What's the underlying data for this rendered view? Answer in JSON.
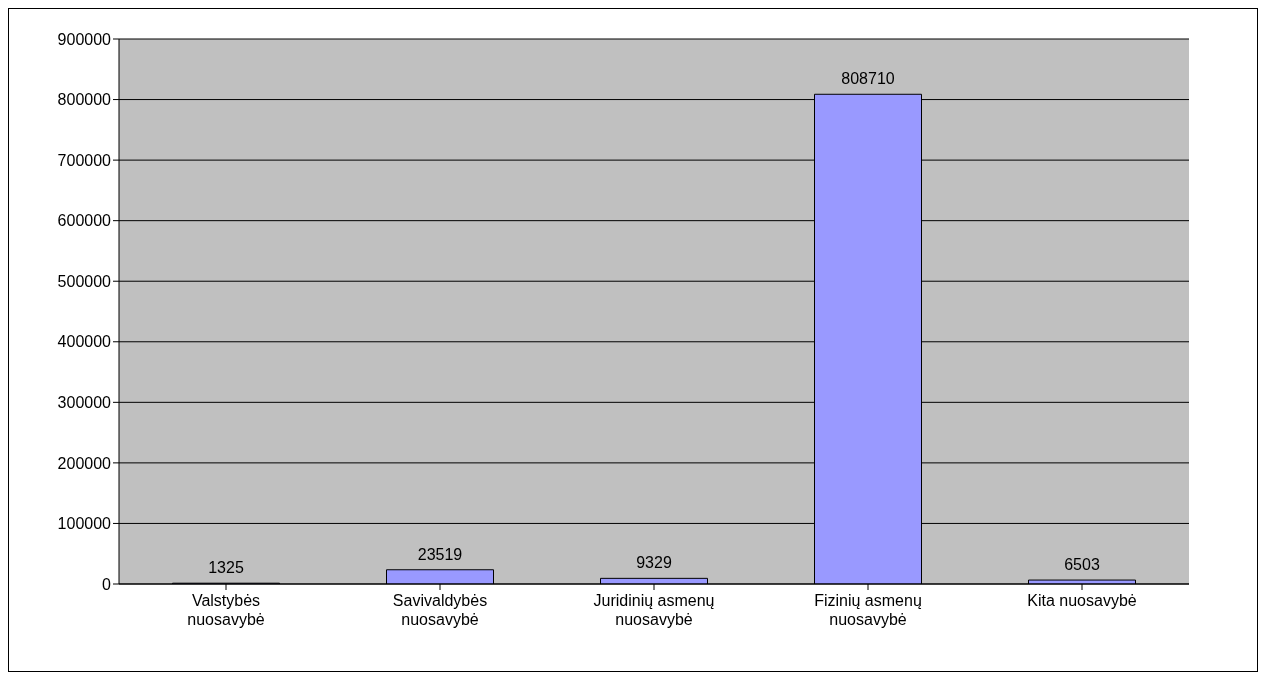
{
  "chart_data": {
    "type": "bar",
    "categories": [
      "Valstybės nuosavybė",
      "Savivaldybės nuosavybė",
      "Juridinių asmenų nuosavybė",
      "Fizinių asmenų nuosavybė",
      "Kita nuosavybė"
    ],
    "values": [
      1325,
      23519,
      9329,
      808710,
      6503
    ],
    "color": "#9999ff",
    "ylim": [
      0,
      900000
    ],
    "yticks": [
      0,
      100000,
      200000,
      300000,
      400000,
      500000,
      600000,
      700000,
      800000,
      900000
    ],
    "grid": "y",
    "data_labels": true
  }
}
